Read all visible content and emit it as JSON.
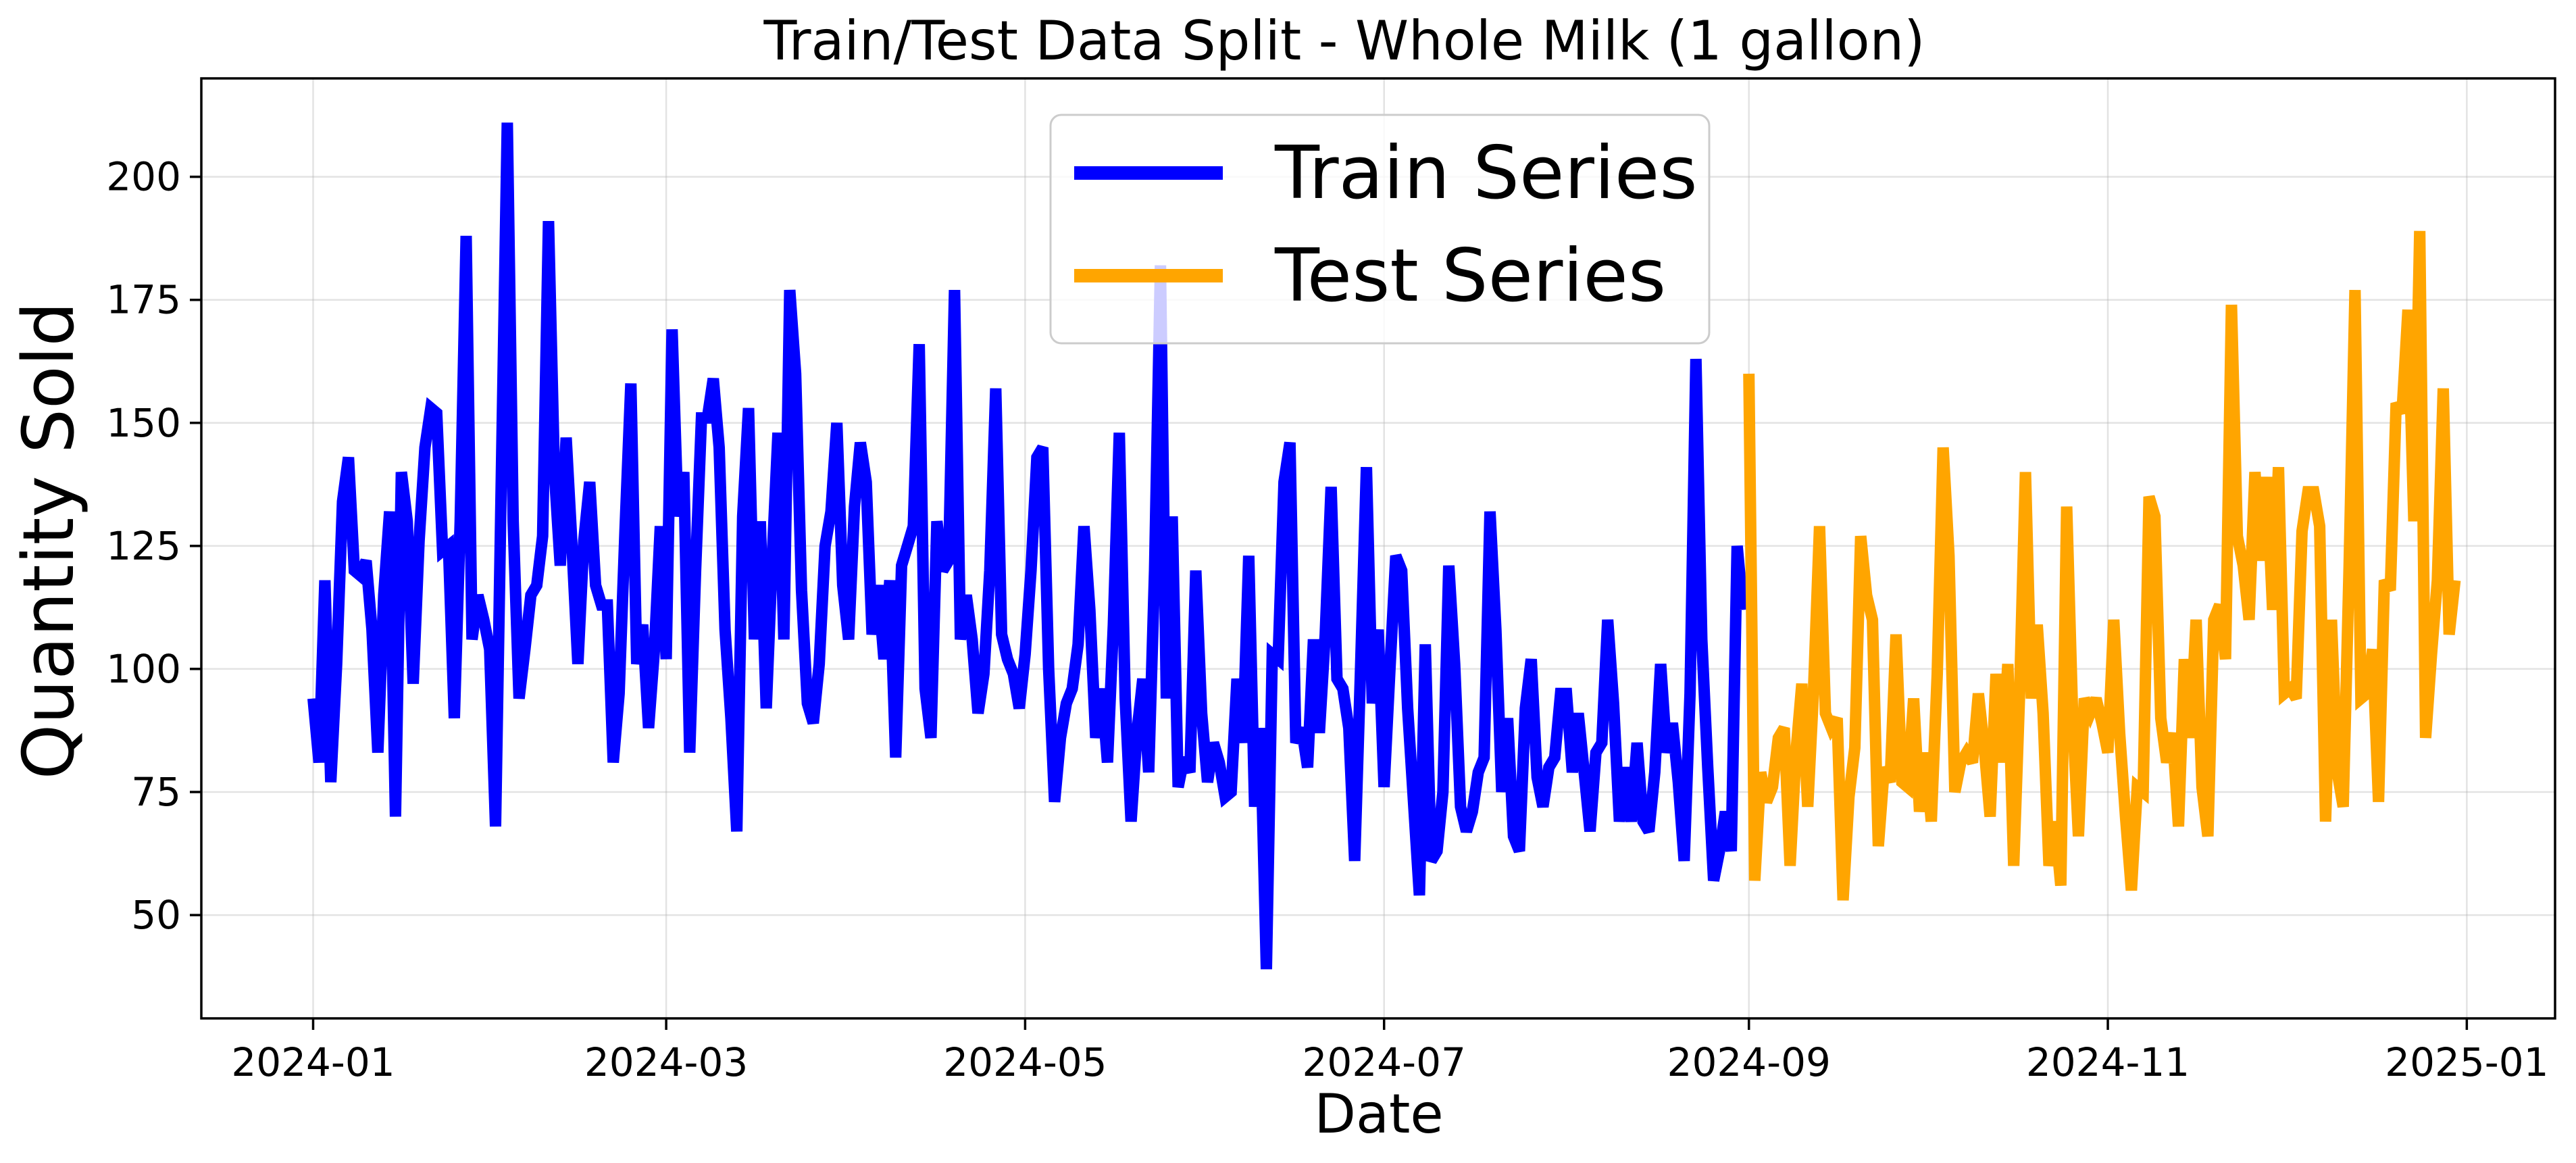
{
  "chart_data": {
    "type": "line",
    "title": "Train/Test Data Split - Whole Milk (1 gallon)",
    "xlabel": "Date",
    "ylabel": "Quantity Sold",
    "x_ticks": [
      "2024-01",
      "2024-03",
      "2024-05",
      "2024-07",
      "2024-09",
      "2024-11",
      "2025-01"
    ],
    "y_ticks": [
      50,
      75,
      100,
      125,
      150,
      175,
      200
    ],
    "xlim": [
      "2023-12-13",
      "2025-01-16"
    ],
    "ylim": [
      29,
      220
    ],
    "grid": true,
    "legend_position": "upper-center",
    "series": [
      {
        "name": "Train Series",
        "color": "#0000ff",
        "start_date": "2024-01-01",
        "values": [
          94,
          81,
          118,
          77,
          101,
          134,
          143,
          120,
          119,
          122,
          108,
          83,
          115,
          132,
          70,
          140,
          130,
          97,
          126,
          145,
          153,
          152,
          124,
          125,
          90,
          130,
          188,
          106,
          115,
          110,
          104,
          68,
          140,
          211,
          130,
          94,
          104,
          115,
          117,
          127,
          191,
          140,
          121,
          147,
          125,
          101,
          126,
          138,
          117,
          113,
          113,
          81,
          95,
          128,
          158,
          101,
          109,
          88,
          104,
          129,
          102,
          169,
          131,
          140,
          83,
          120,
          151,
          151,
          159,
          145,
          108,
          90,
          67,
          131,
          153,
          106,
          130,
          92,
          122,
          148,
          106,
          177,
          160,
          116,
          93,
          89,
          101,
          125,
          132,
          150,
          117,
          106,
          133,
          146,
          138,
          107,
          117,
          102,
          118,
          82,
          121,
          125,
          129,
          166,
          96,
          86,
          130,
          120,
          122,
          177,
          106,
          115,
          106,
          91,
          99,
          120,
          157,
          107,
          102,
          99,
          92,
          103,
          120,
          143,
          145,
          100,
          73,
          86,
          93,
          96,
          105,
          129,
          112,
          86,
          96,
          81,
          109,
          148,
          94,
          69,
          87,
          98,
          79,
          120,
          182,
          94,
          131,
          76,
          82,
          79,
          120,
          91,
          77,
          85,
          81,
          74,
          75,
          98,
          85,
          123,
          72,
          88,
          39,
          103,
          102,
          138,
          146,
          85,
          88,
          80,
          106,
          87,
          107,
          137,
          98,
          96,
          88,
          61,
          100,
          141,
          93,
          108,
          76,
          100,
          123,
          120,
          92,
          73,
          54,
          105,
          61,
          63,
          75,
          121,
          101,
          72,
          67,
          71,
          79,
          82,
          132,
          108,
          75,
          90,
          66,
          63,
          92,
          102,
          78,
          72,
          80,
          82,
          95,
          95,
          79,
          91,
          79,
          67,
          83,
          85,
          110,
          93,
          69,
          80,
          69,
          85,
          69,
          67,
          79,
          101,
          83,
          89,
          77,
          61,
          95,
          163,
          106,
          80,
          57,
          63,
          71,
          63,
          125,
          112
        ]
      },
      {
        "name": "Test Series",
        "color": "#ffa500",
        "start_date": "2024-09-01",
        "values": [
          160,
          57,
          79,
          73,
          76,
          86,
          88,
          60,
          83,
          97,
          72,
          96,
          129,
          91,
          88,
          90,
          53,
          74,
          84,
          127,
          115,
          110,
          64,
          80,
          77,
          107,
          77,
          76,
          94,
          71,
          83,
          69,
          99,
          145,
          123,
          75,
          81,
          83,
          81,
          95,
          84,
          70,
          99,
          81,
          101,
          60,
          95,
          140,
          94,
          109,
          91,
          60,
          69,
          56,
          133,
          91,
          66,
          94,
          91,
          94,
          89,
          83,
          110,
          87,
          70,
          55,
          76,
          75,
          135,
          131,
          90,
          81,
          87,
          68,
          102,
          86,
          110,
          76,
          66,
          110,
          113,
          102,
          174,
          127,
          121,
          110,
          140,
          122,
          139,
          112,
          141,
          95,
          96,
          94,
          128,
          136,
          136,
          129,
          69,
          110,
          79,
          72,
          121,
          177,
          94,
          95,
          104,
          73,
          118,
          116,
          154,
          152,
          173,
          130,
          189,
          86,
          103,
          118,
          157,
          107,
          118
        ]
      }
    ]
  }
}
